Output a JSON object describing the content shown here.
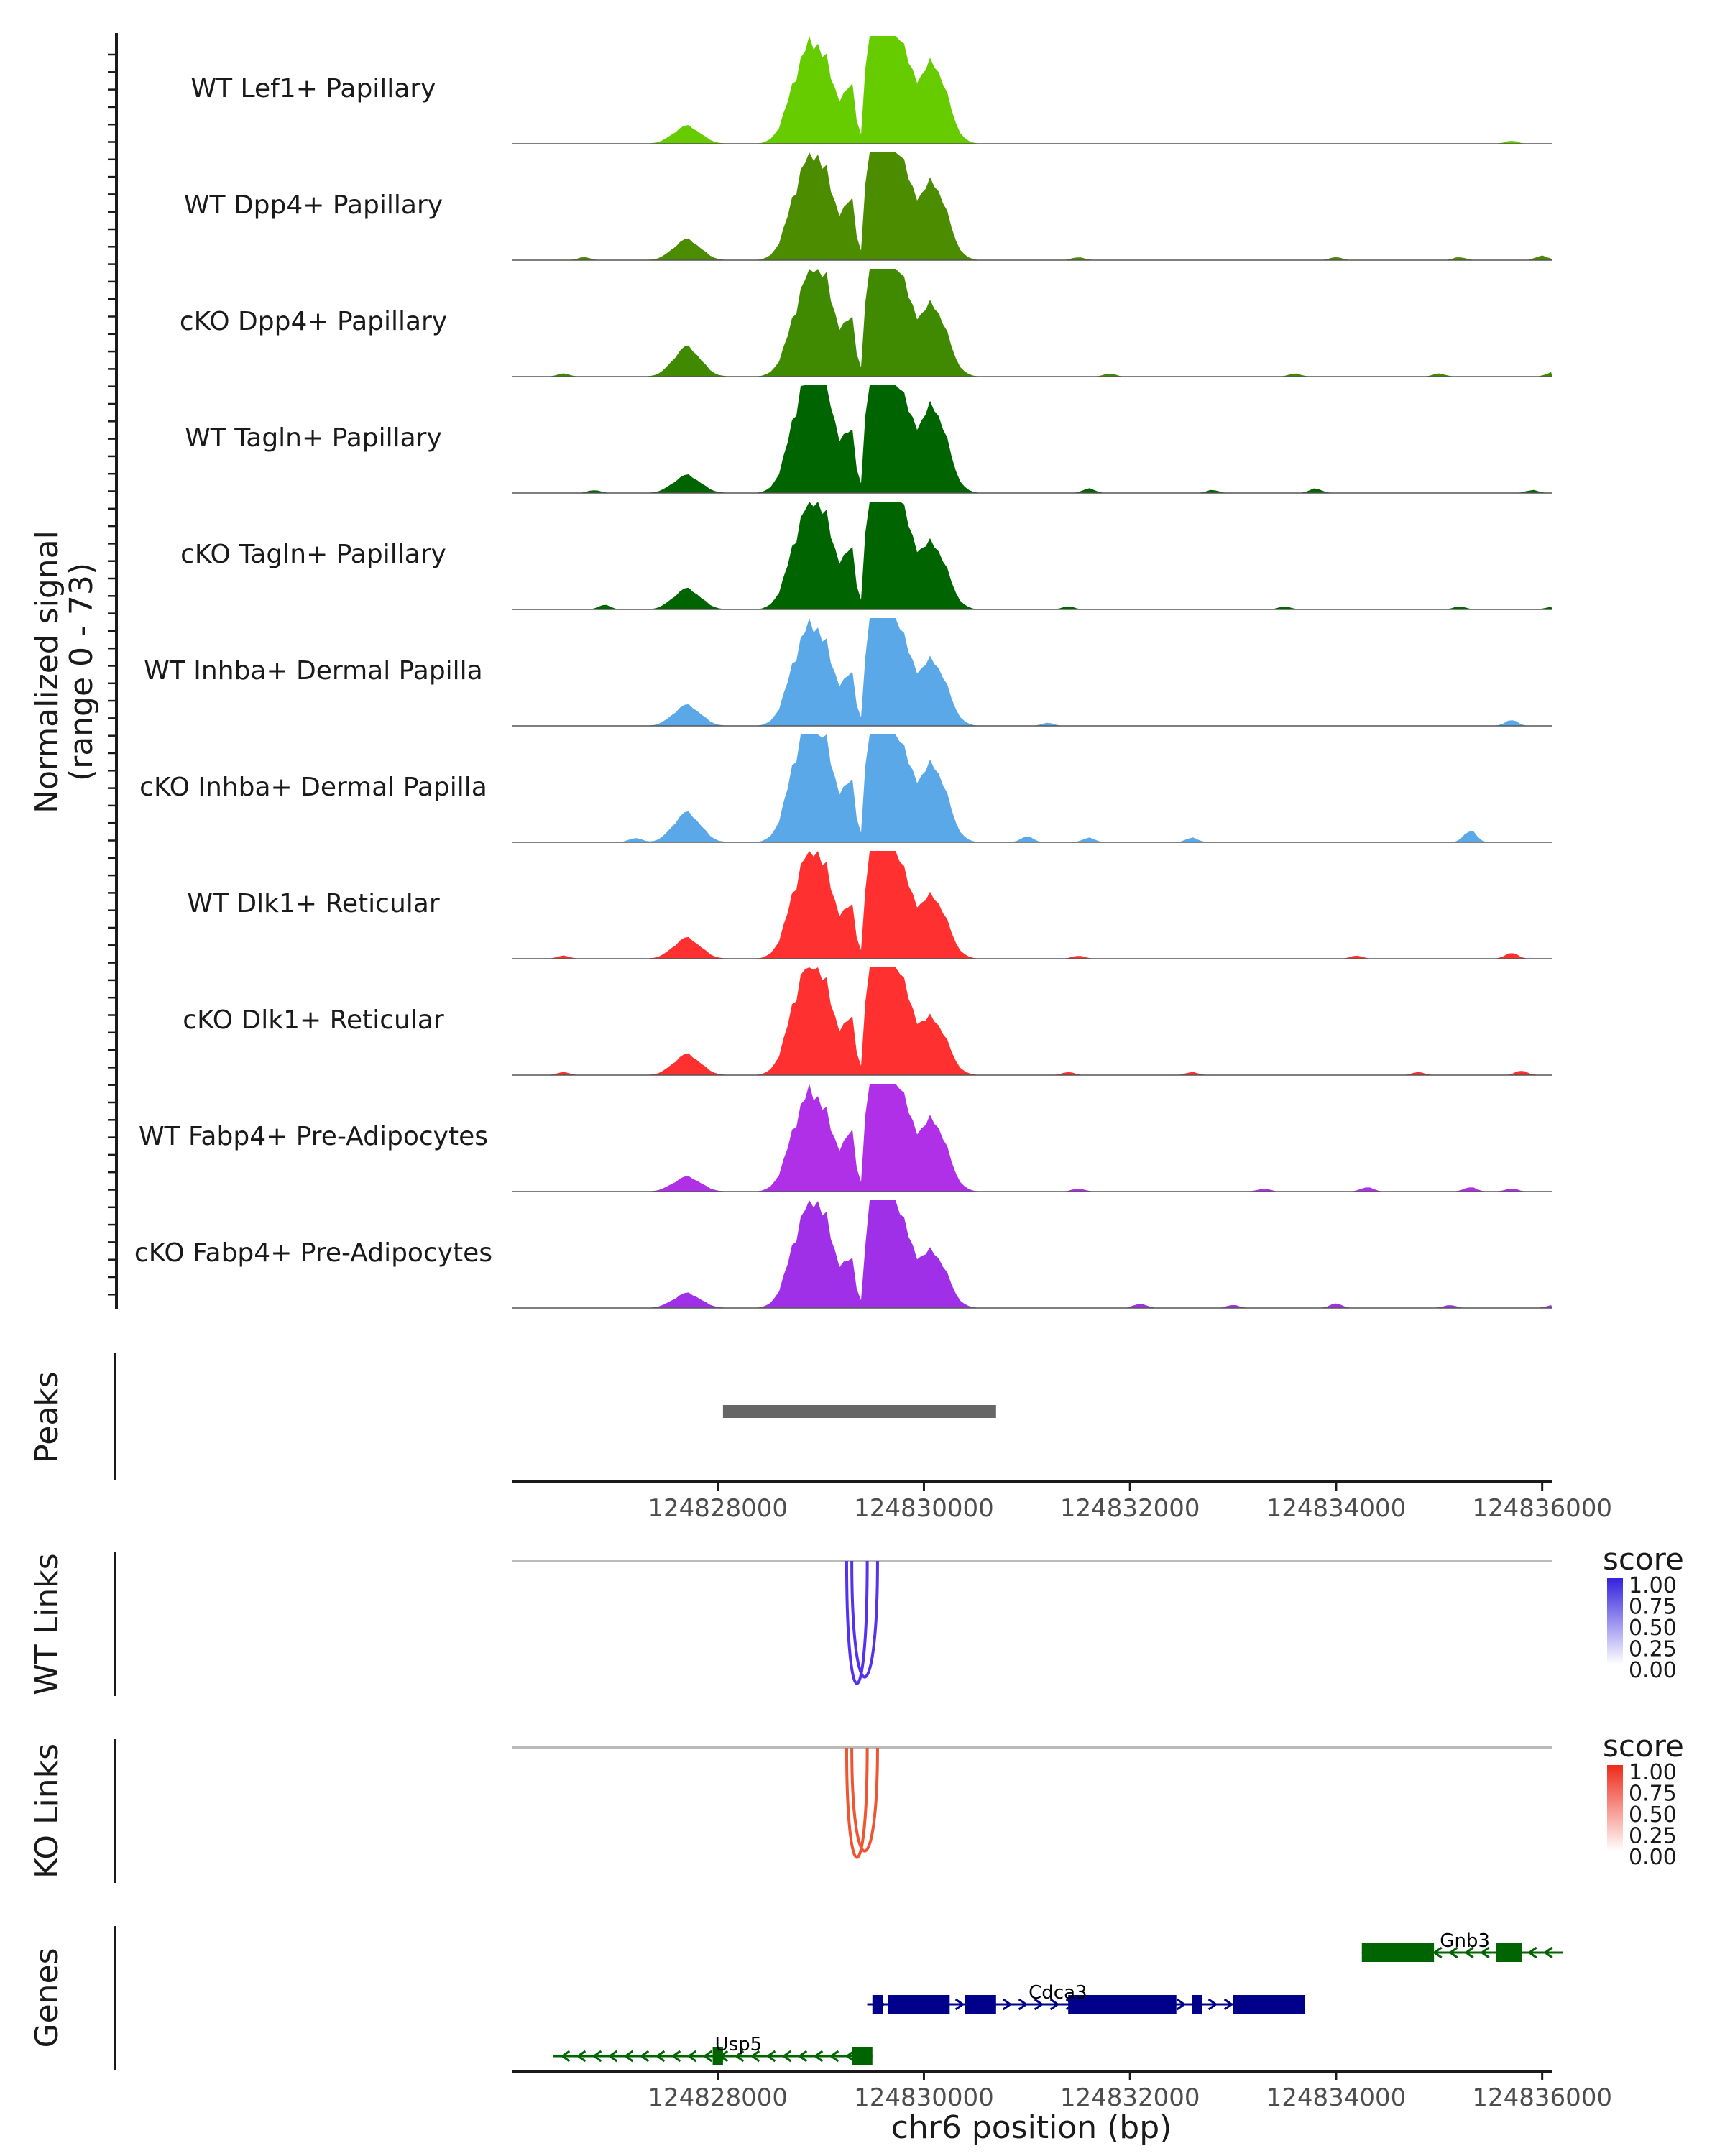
{
  "chart_data": {
    "type": "area",
    "title": "",
    "ylabel": "Normalized signal",
    "ylabel_range": "(range 0 - 73)",
    "xlabel": "chr6 position (bp)",
    "xlim": [
      124826000,
      124836100
    ],
    "x_ticks": [
      124828000,
      124830000,
      124832000,
      124834000,
      124836000
    ],
    "x_tick_labels": [
      "124828000",
      "124830000",
      "124832000",
      "124834000",
      "124836000"
    ],
    "coverage": {
      "ymax": 73,
      "main_peaks": [
        {
          "center": 124827700,
          "width": 130
        },
        {
          "center": 124828800,
          "width": 130
        },
        {
          "center": 124829000,
          "width": 130
        },
        {
          "center": 124829250,
          "width": 120
        },
        {
          "center": 124829450,
          "width": 140
        },
        {
          "center": 124829580,
          "width": 130
        },
        {
          "center": 124829700,
          "width": 110
        },
        {
          "center": 124829850,
          "width": 110
        },
        {
          "center": 124830100,
          "width": 130
        }
      ],
      "tracks": [
        {
          "name": "WT Lef1+ Papillary",
          "color": "#66cc00",
          "heights": [
            12,
            40,
            52,
            0,
            70,
            58,
            40,
            22,
            52
          ],
          "minor": [
            {
              "x": 124835700,
              "h": 2
            }
          ]
        },
        {
          "name": "WT Dpp4+ Papillary",
          "color": "#4c8c00",
          "heights": [
            14,
            42,
            55,
            0,
            73,
            55,
            42,
            22,
            50
          ],
          "minor": [
            {
              "x": 124826700,
              "h": 2
            },
            {
              "x": 124831500,
              "h": 2
            },
            {
              "x": 124834000,
              "h": 2
            },
            {
              "x": 124835200,
              "h": 2
            },
            {
              "x": 124836000,
              "h": 3
            }
          ]
        },
        {
          "name": "cKO Dpp4+ Papillary",
          "color": "#3f8a00",
          "heights": [
            20,
            38,
            62,
            0,
            68,
            60,
            40,
            22,
            46
          ],
          "minor": [
            {
              "x": 124826500,
              "h": 2
            },
            {
              "x": 124831800,
              "h": 2
            },
            {
              "x": 124833600,
              "h": 2
            },
            {
              "x": 124835000,
              "h": 2
            },
            {
              "x": 124836100,
              "h": 3
            }
          ]
        },
        {
          "name": "WT Tagln+ Papillary",
          "color": "#006400",
          "heights": [
            12,
            48,
            70,
            0,
            73,
            58,
            40,
            22,
            56
          ],
          "minor": [
            {
              "x": 124826800,
              "h": 2
            },
            {
              "x": 124831600,
              "h": 3
            },
            {
              "x": 124832800,
              "h": 2
            },
            {
              "x": 124833800,
              "h": 3
            },
            {
              "x": 124835900,
              "h": 2
            }
          ]
        },
        {
          "name": "cKO Tagln+ Papillary",
          "color": "#006400",
          "heights": [
            14,
            42,
            58,
            0,
            73,
            56,
            44,
            24,
            42
          ],
          "minor": [
            {
              "x": 124826900,
              "h": 3
            },
            {
              "x": 124831400,
              "h": 2
            },
            {
              "x": 124833500,
              "h": 2
            },
            {
              "x": 124835200,
              "h": 2
            },
            {
              "x": 124836100,
              "h": 2
            }
          ]
        },
        {
          "name": "WT Inhba+ Dermal Papilla",
          "color": "#5aa8e8",
          "heights": [
            14,
            42,
            50,
            0,
            62,
            56,
            38,
            20,
            42
          ],
          "minor": [
            {
              "x": 124831200,
              "h": 2
            },
            {
              "x": 124835700,
              "h": 4
            }
          ]
        },
        {
          "name": "cKO Inhba+ Dermal Papilla",
          "color": "#5aa8e8",
          "heights": [
            20,
            52,
            62,
            0,
            73,
            56,
            38,
            22,
            50
          ],
          "minor": [
            {
              "x": 124827200,
              "h": 3
            },
            {
              "x": 124831000,
              "h": 4
            },
            {
              "x": 124831600,
              "h": 3
            },
            {
              "x": 124832600,
              "h": 3
            },
            {
              "x": 124835300,
              "h": 8
            }
          ]
        },
        {
          "name": "WT Dlk1+ Reticular",
          "color": "#ff3030",
          "heights": [
            14,
            44,
            56,
            0,
            62,
            56,
            38,
            20,
            40
          ],
          "minor": [
            {
              "x": 124826500,
              "h": 2
            },
            {
              "x": 124831500,
              "h": 2
            },
            {
              "x": 124834200,
              "h": 2
            },
            {
              "x": 124835700,
              "h": 4
            }
          ]
        },
        {
          "name": "cKO Dlk1+ Reticular",
          "color": "#ff3030",
          "heights": [
            14,
            48,
            56,
            0,
            68,
            56,
            40,
            22,
            36
          ],
          "minor": [
            {
              "x": 124826500,
              "h": 2
            },
            {
              "x": 124831400,
              "h": 2
            },
            {
              "x": 124832600,
              "h": 2
            },
            {
              "x": 124834800,
              "h": 2
            },
            {
              "x": 124835800,
              "h": 3
            }
          ]
        },
        {
          "name": "WT Fabp4+ Pre-Adipocytes",
          "color": "#b030e8",
          "heights": [
            10,
            42,
            48,
            0,
            73,
            56,
            40,
            22,
            46
          ],
          "minor": [
            {
              "x": 124831500,
              "h": 2
            },
            {
              "x": 124833300,
              "h": 2
            },
            {
              "x": 124834300,
              "h": 3
            },
            {
              "x": 124835300,
              "h": 3
            },
            {
              "x": 124835700,
              "h": 2
            }
          ]
        },
        {
          "name": "cKO Fabp4+ Pre-Adipocytes",
          "color": "#a030e8",
          "heights": [
            10,
            42,
            56,
            0,
            56,
            52,
            38,
            20,
            36
          ],
          "minor": [
            {
              "x": 124832100,
              "h": 3
            },
            {
              "x": 124833000,
              "h": 2
            },
            {
              "x": 124834000,
              "h": 3
            },
            {
              "x": 124835100,
              "h": 2
            },
            {
              "x": 124836100,
              "h": 2
            }
          ]
        }
      ]
    },
    "peaks": {
      "label": "Peaks",
      "ranges": [
        [
          124828050,
          124830700
        ]
      ],
      "color": "#666666"
    },
    "links": [
      {
        "label": "WT Links",
        "color": "#5533ee",
        "legend_title": "score",
        "legend_ticks": [
          "1.00",
          "0.75",
          "0.50",
          "0.25",
          "0.00"
        ],
        "legend_color_high": "#3322dd",
        "arcs": [
          {
            "start": 124829250,
            "end": 124829450,
            "score": 0.95
          },
          {
            "start": 124829300,
            "end": 124829550,
            "score": 0.9
          }
        ]
      },
      {
        "label": "KO Links",
        "color": "#ee5533",
        "legend_title": "score",
        "legend_ticks": [
          "1.00",
          "0.75",
          "0.50",
          "0.25",
          "0.00"
        ],
        "legend_color_high": "#ee2a1a",
        "arcs": [
          {
            "start": 124829250,
            "end": 124829450,
            "score": 0.85
          },
          {
            "start": 124829300,
            "end": 124829550,
            "score": 0.8
          }
        ]
      }
    ],
    "genes": {
      "label": "Genes",
      "items": [
        {
          "name": "Gnb3",
          "row": 0,
          "strand": "-",
          "color": "#006400",
          "range": [
            124834250,
            124836200
          ],
          "exons": [
            [
              124834250,
              124834950
            ],
            [
              124835550,
              124835800
            ]
          ],
          "label_x": 124835250
        },
        {
          "name": "Cdca3",
          "row": 1,
          "strand": "+",
          "color": "#00008b",
          "range": [
            124829450,
            124833700
          ],
          "exons": [
            [
              124829500,
              124829600
            ],
            [
              124829650,
              124830250
            ],
            [
              124830400,
              124830700
            ],
            [
              124831400,
              124832450
            ],
            [
              124832600,
              124832700
            ],
            [
              124833000,
              124833700
            ]
          ],
          "label_x": 124831300
        },
        {
          "name": "Usp5",
          "row": 2,
          "strand": "-",
          "color": "#006400",
          "range": [
            124826400,
            124829500
          ],
          "exons": [
            [
              124827950,
              124828050
            ],
            [
              124829300,
              124829500
            ]
          ],
          "label_x": 124828200
        }
      ]
    }
  }
}
